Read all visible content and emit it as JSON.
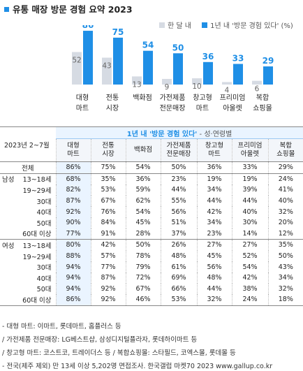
{
  "title": "유통 매장 방문 경험 요약 2023",
  "legend": {
    "series_a": "한 달 내",
    "series_b": "1년 내 '방문 경험 있다' (%)"
  },
  "colors": {
    "accent": "#1f8fe6",
    "gray": "#d6dbe3",
    "highlight": "#eaf4ff"
  },
  "chart_data": {
    "type": "bar",
    "categories": [
      [
        "대형",
        "마트"
      ],
      [
        "전통",
        "시장"
      ],
      [
        "백화점",
        ""
      ],
      [
        "가전제품",
        "전문매장"
      ],
      [
        "창고형",
        "마트"
      ],
      [
        "프리미엄",
        "아울렛"
      ],
      [
        "복합",
        "쇼핑몰"
      ]
    ],
    "series": [
      {
        "name": "한 달 내",
        "values": [
          52,
          43,
          13,
          9,
          10,
          4,
          6
        ]
      },
      {
        "name": "1년 내 '방문 경험 있다' (%)",
        "values": [
          86,
          75,
          54,
          50,
          36,
          33,
          29
        ]
      }
    ],
    "ylim": [
      0,
      95
    ]
  },
  "table": {
    "period": "2023년 2~7월",
    "banner": "1년 내 '방문 경험 있다'",
    "banner_sub": " - 성·연령별",
    "headers": [
      [
        "대형",
        "마트"
      ],
      [
        "전통",
        "시장"
      ],
      [
        "백화점",
        ""
      ],
      [
        "가전제품",
        "전문매장"
      ],
      [
        "창고형",
        "마트"
      ],
      [
        "프리미엄",
        "아울렛"
      ],
      [
        "복합",
        "쇼핑몰"
      ]
    ],
    "total": {
      "label": "전체",
      "values": [
        "86%",
        "75%",
        "54%",
        "50%",
        "36%",
        "33%",
        "29%"
      ]
    },
    "groups": [
      {
        "name": "남성",
        "rows": [
          {
            "label": "13~18세",
            "values": [
              "68%",
              "35%",
              "36%",
              "23%",
              "19%",
              "19%",
              "24%"
            ]
          },
          {
            "label": "19~29세",
            "values": [
              "82%",
              "53%",
              "59%",
              "44%",
              "34%",
              "39%",
              "41%"
            ]
          },
          {
            "label": "30대",
            "values": [
              "87%",
              "67%",
              "62%",
              "55%",
              "44%",
              "44%",
              "40%"
            ]
          },
          {
            "label": "40대",
            "values": [
              "92%",
              "76%",
              "54%",
              "56%",
              "42%",
              "40%",
              "32%"
            ]
          },
          {
            "label": "50대",
            "values": [
              "90%",
              "84%",
              "45%",
              "51%",
              "34%",
              "30%",
              "20%"
            ]
          },
          {
            "label": "60대 이상",
            "values": [
              "77%",
              "91%",
              "28%",
              "37%",
              "23%",
              "14%",
              "12%"
            ]
          }
        ]
      },
      {
        "name": "여성",
        "rows": [
          {
            "label": "13~18세",
            "values": [
              "80%",
              "42%",
              "50%",
              "26%",
              "27%",
              "27%",
              "35%"
            ]
          },
          {
            "label": "19~29세",
            "values": [
              "88%",
              "57%",
              "78%",
              "48%",
              "45%",
              "52%",
              "50%"
            ]
          },
          {
            "label": "30대",
            "values": [
              "94%",
              "77%",
              "79%",
              "61%",
              "56%",
              "54%",
              "43%"
            ]
          },
          {
            "label": "40대",
            "values": [
              "94%",
              "87%",
              "72%",
              "69%",
              "48%",
              "42%",
              "34%"
            ]
          },
          {
            "label": "50대",
            "values": [
              "94%",
              "92%",
              "67%",
              "66%",
              "44%",
              "38%",
              "32%"
            ]
          },
          {
            "label": "60대 이상",
            "values": [
              "86%",
              "92%",
              "46%",
              "53%",
              "32%",
              "24%",
              "18%"
            ]
          }
        ]
      }
    ]
  },
  "footnotes": [
    "- 대형 마트: 이마트, 롯데마트, 홈플러스 등",
    "  / 가전제품 전문매장: LG베스트샵, 삼성디지털플라자, 롯데하이마트 등",
    "  / 창고형 마트: 코스트코, 트레이더스 등 / 복합쇼핑몰: 스타필드, 코엑스몰, 롯데몰 등",
    "- 전국(제주 제외) 만 13세 이상 5,202명 면접조사. 한국갤럽 마켓70 2023 www.gallup.co.kr"
  ]
}
